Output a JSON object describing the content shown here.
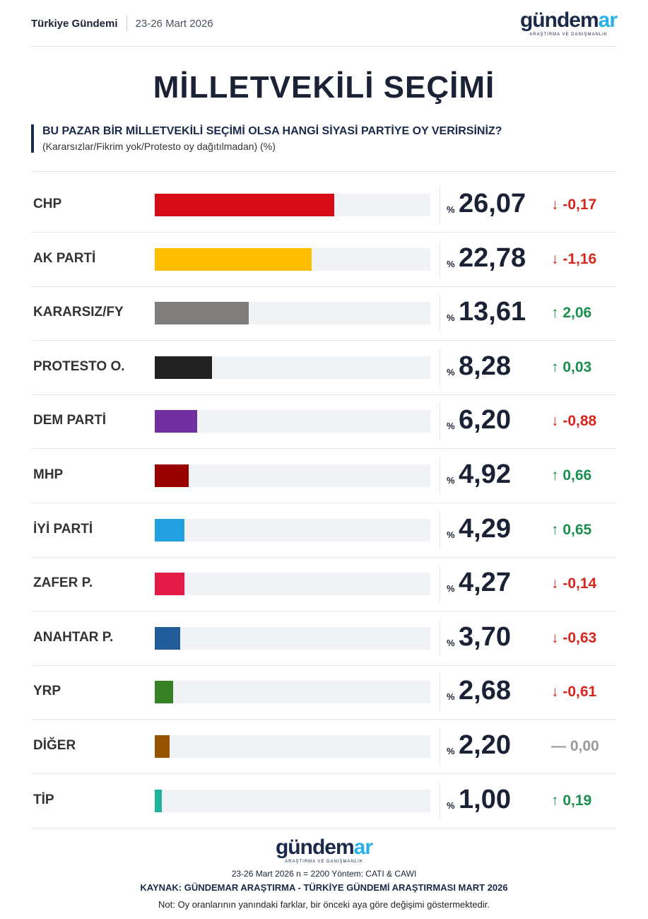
{
  "header": {
    "left": "Türkiye Gündemi",
    "date": "23-26 Mart 2026"
  },
  "logo": {
    "word_main": "gündem",
    "word_accent": "ar",
    "tagline": "ARAŞTIRMA VE DANIŞMANLIK"
  },
  "title": "MİLLETVEKİLİ SEÇİMİ",
  "question": "BU PAZAR BİR MİLLETVEKİLİ SEÇİMİ OLSA HANGİ SİYASİ PARTİYE OY VERİRSİNİZ?",
  "subtitle": "(Kararsızlar/Fikrim yok/Protesto oy dağıtılmadan) (%)",
  "chart_data": {
    "type": "bar",
    "orientation": "horizontal",
    "xlim": [
      0,
      40
    ],
    "value_prefix": "%",
    "categories": [
      "CHP",
      "AK PARTİ",
      "KARARSIZ/FY",
      "PROTESTO O.",
      "DEM PARTİ",
      "MHP",
      "İYİ PARTİ",
      "ZAFER P.",
      "ANAHTAR P.",
      "YRP",
      "DİĞER",
      "TİP"
    ],
    "values": [
      "26,07",
      "22,78",
      "13,61",
      "8,28",
      "6,20",
      "4,92",
      "4,29",
      "4,27",
      "3,70",
      "2,68",
      "2,20",
      "1,00"
    ],
    "changes": [
      "-0,17",
      "-1,16",
      "2,06",
      "0,03",
      "-0,88",
      "0,66",
      "0,65",
      "-0,14",
      "-0,63",
      "-0,61",
      "0,00",
      "0,19"
    ],
    "change_direction": [
      "down",
      "down",
      "up",
      "up",
      "down",
      "up",
      "up",
      "down",
      "down",
      "down",
      "flat",
      "up"
    ],
    "colors": [
      "#d50c16",
      "#fdbf00",
      "#827e7d",
      "#222222",
      "#7030a0",
      "#990000",
      "#22a0df",
      "#e31b46",
      "#1f5c99",
      "#368026",
      "#985500",
      "#1fb39a"
    ],
    "direction_colors": {
      "up": "#1a8f4e",
      "down": "#d7261e",
      "flat": "#9a9a9a"
    }
  },
  "footer": {
    "method": "23-26 Mart 2026 n = 2200 Yöntem: CATI & CAWI",
    "source": "KAYNAK: GÜNDEMAR ARAŞTIRMA - TÜRKİYE GÜNDEMİ ARAŞTIRMASI MART 2026",
    "note": "Not: Oy oranlarının yanındaki farklar, bir önceki aya göre değişimi göstermektedir."
  }
}
